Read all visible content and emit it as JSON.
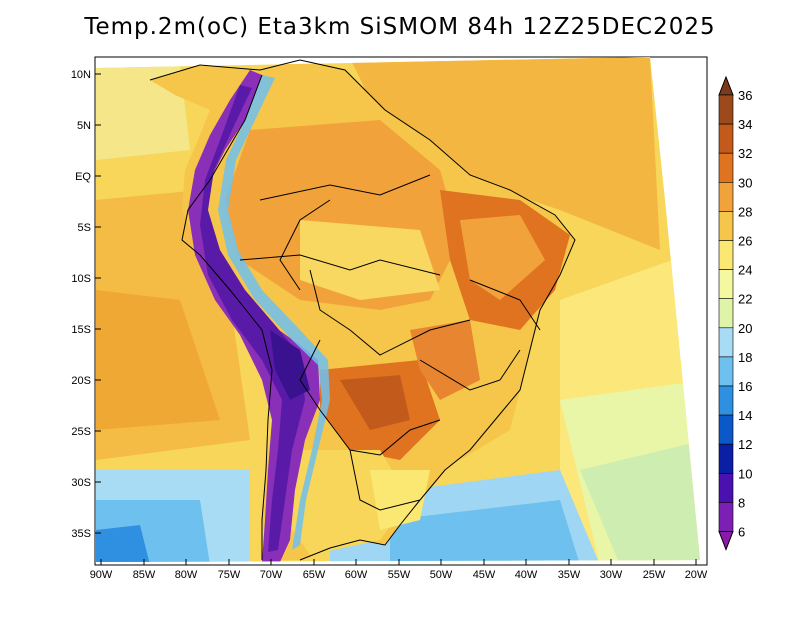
{
  "title": "Temp.2m(oC) Eta3km SiSMOM 84h 12Z25DEC2025",
  "map": {
    "lat_labels": [
      "10N",
      "5N",
      "EQ",
      "5S",
      "10S",
      "15S",
      "20S",
      "25S",
      "30S",
      "35S"
    ],
    "lat_values": [
      10,
      5,
      0,
      -5,
      -10,
      -15,
      -20,
      -25,
      -30,
      -35
    ],
    "lon_labels": [
      "90W",
      "85W",
      "80W",
      "75W",
      "70W",
      "65W",
      "60W",
      "55W",
      "50W",
      "45W",
      "40W",
      "35W",
      "30W",
      "25W",
      "20W"
    ],
    "lon_values": [
      -90,
      -85,
      -80,
      -75,
      -70,
      -65,
      -60,
      -55,
      -50,
      -45,
      -40,
      -35,
      -30,
      -25,
      -20
    ]
  },
  "colorbar": {
    "labels": [
      "36",
      "34",
      "32",
      "30",
      "28",
      "26",
      "24",
      "22",
      "20",
      "18",
      "16",
      "14",
      "12",
      "10",
      "8",
      "6"
    ],
    "colors": [
      "#7a3a1b",
      "#9c4a1c",
      "#c25a1c",
      "#e07320",
      "#f2a23a",
      "#f5c64a",
      "#fbe872",
      "#f4f8a0",
      "#dff4a8",
      "#a8dcf5",
      "#6ec0ef",
      "#2f8fe0",
      "#0b58c8",
      "#0a1fa5",
      "#4a10b0",
      "#7b1fb5",
      "#8a1aa8"
    ]
  },
  "colors": {
    "warm": "#f6b23e",
    "hot": "#e57a22",
    "ocean": "#f7d65a",
    "cool": "#8fd3f0",
    "cold": "#5a2db0"
  }
}
